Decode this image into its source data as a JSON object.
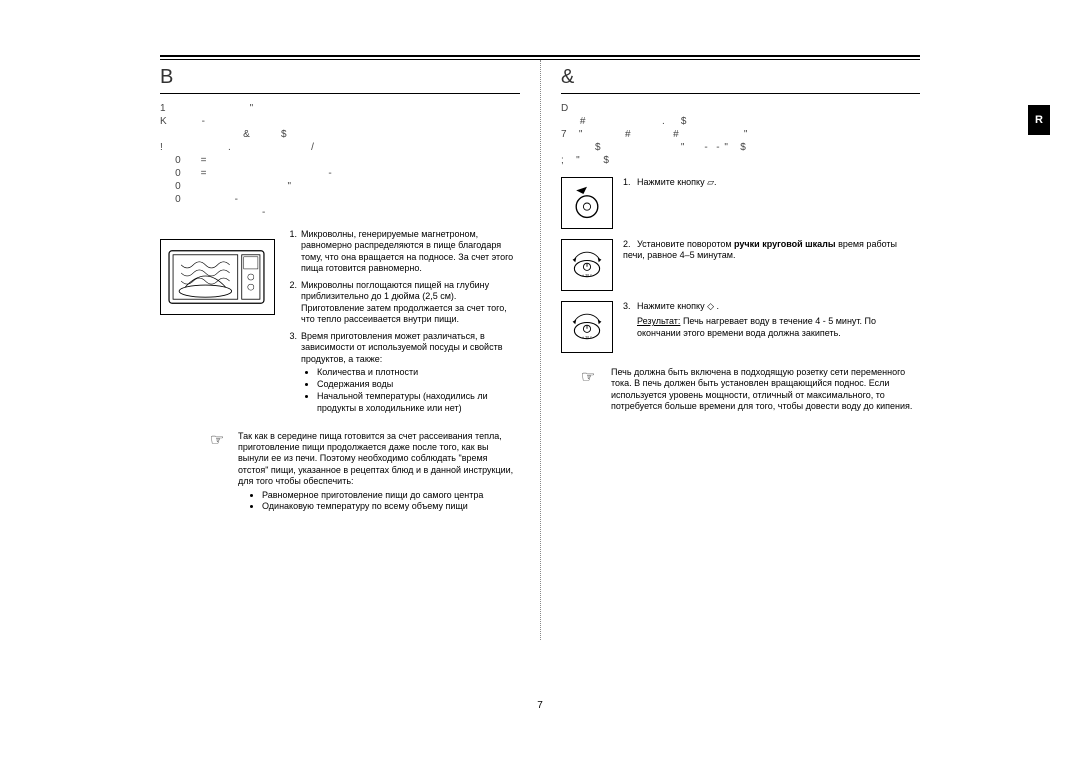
{
  "side_tab": "R",
  "page_number": "7",
  "left": {
    "heading": "B",
    "intro_lines": "1                      \"\nK         -\n                      &        $\n!                 .                     /\n    0     =\n    0     =                                -\n    0                            \"\n    0              -\n                           -",
    "items": [
      {
        "n": "1.",
        "text": "Микроволны, генерируемые магнетроном, равномерно распределяются в пище благодаря тому, что она вращается на подносе. За счет этого пища готовится равномерно."
      },
      {
        "n": "2.",
        "text": "Микроволны поглощаются пищей на глубину приблизительно до 1 дюйма (2,5 см). Приготовление затем продолжается за счет того, что тепло рассеивается внутри пищи."
      },
      {
        "n": "3.",
        "text": "Время приготовления может различаться, в зависимости от используемой посуды и свойств продуктов, а также:",
        "subs": [
          "Количества и плотности",
          "Содержания воды",
          "Начальной температуры (находились ли продукты в холодильнике или нет)"
        ]
      }
    ],
    "note_icon": "☞",
    "note": "Так как в середине пища готовится за счет рассеивания тепла, приготовление пищи продолжается даже после того, как вы вынули ее из печи. Поэтому необходимо соблюдать \"время отстоя\" пищи, указанное в рецептах блюд и в данной инструкции, для того чтобы обеспечить:",
    "note_subs": [
      "Равномерное приготовление пищи до самого центра",
      "Одинаковую температуру по всему объему пищи"
    ]
  },
  "right": {
    "heading": "&",
    "intro_lines": "D\n     #                    .    $\n7   \"           #           #                 \"\n         $                     \"     -  - \"   $\n;   \"      $",
    "steps": [
      {
        "n": "1.",
        "text_parts": [
          [
            "Нажмите кнопку ",
            ""
          ],
          [
            "",
            "."
          ]
        ],
        "icon": "dial-triangle"
      },
      {
        "n": "2.",
        "text_html": "Установите поворотом <b>ручки круговой шкалы</b> время работы печи, равное 4–5 минутам.",
        "icon": "rotary"
      },
      {
        "n": "3.",
        "text_parts": [
          [
            "Нажмите кнопку ",
            ""
          ],
          [
            "",
            " ."
          ]
        ],
        "result_label": "Результат:",
        "result": "Печь нагревает воду в течение 4 - 5 минут. По окончании этого времени вода должна закипеть.",
        "icon": "rotary"
      }
    ],
    "note_icon": "☞",
    "note": "Печь должна быть включена в подходящую розетку сети переменного тока. В печь должен быть установлен вращающийся поднос. Если используется уровень мощности, отличный от максимального, то потребуется больше времени для того, чтобы довести воду до кипения."
  }
}
